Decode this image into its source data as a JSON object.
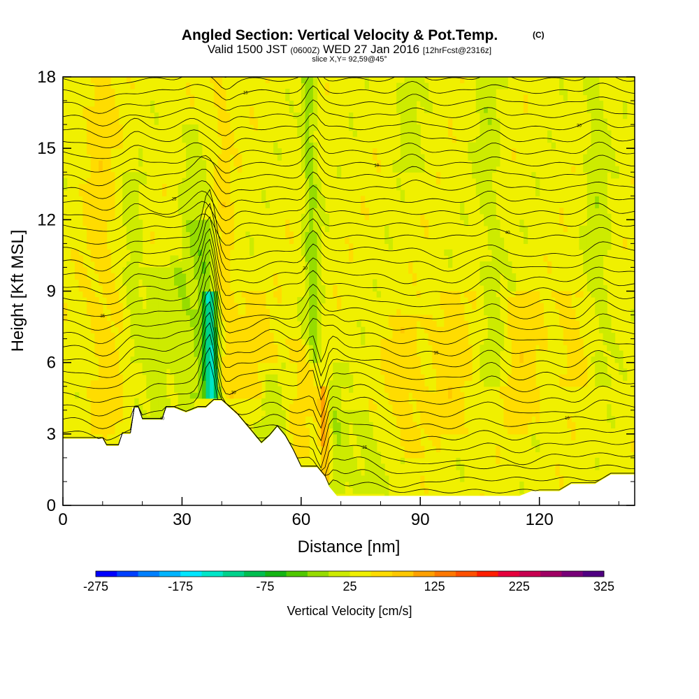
{
  "header": {
    "title": "Angled Section: Vertical Velocity & Pot.Temp.",
    "title_unit": "(C)",
    "valid_prefix": "Valid 1500 JST",
    "valid_utc": "(0600Z)",
    "valid_date": "WED 27 Jan 2016",
    "forecast": "[12hrFcst@2316z]",
    "slice": "slice X,Y= 92,59@45°"
  },
  "chart_data": {
    "type": "heatmap",
    "xlabel": "Distance [nm]",
    "ylabel": "Height [Kft MSL]",
    "xlim": [
      0,
      144
    ],
    "ylim": [
      0,
      18
    ],
    "x_ticks": [
      0,
      30,
      60,
      90,
      120
    ],
    "y_ticks": [
      0,
      3,
      6,
      9,
      12,
      15,
      18
    ],
    "colorbar": {
      "label": "Vertical Velocity [cm/s]",
      "tick_labels": [
        "-275",
        "-175",
        "-75",
        "25",
        "125",
        "225",
        "325"
      ],
      "min": -275,
      "step": 25,
      "colors": [
        "#0000ff",
        "#0040ff",
        "#0080ff",
        "#00b4ff",
        "#00e6ff",
        "#00e6c8",
        "#00d28c",
        "#00be50",
        "#14b414",
        "#50c800",
        "#96dc00",
        "#cdeb00",
        "#f0f000",
        "#ffdc00",
        "#ffc800",
        "#ffa000",
        "#ff7800",
        "#ff5000",
        "#ff1e00",
        "#e6003c",
        "#c80050",
        "#a00064",
        "#780078",
        "#500082"
      ]
    },
    "base_field": 3,
    "features": [
      {
        "x": 10,
        "width": 4,
        "amp": 1,
        "top": 18,
        "bottom": 3
      },
      {
        "x": 18,
        "width": 2.5,
        "amp": -1,
        "top": 14,
        "bottom": 6
      },
      {
        "x": 23,
        "width": 3,
        "amp": -1,
        "top": 10,
        "bottom": 3.5
      },
      {
        "x": 29,
        "width": 3,
        "amp": -1,
        "top": 10,
        "bottom": 4
      },
      {
        "x": 33,
        "width": 3,
        "amp": -1,
        "top": 16,
        "bottom": 4.5
      },
      {
        "x": 37,
        "width": 1.6,
        "amp": -5,
        "top": 9,
        "bottom": 4.5
      },
      {
        "x": 36,
        "width": 2.5,
        "amp": -2,
        "top": 12,
        "bottom": 4.5
      },
      {
        "x": 41,
        "width": 2,
        "amp": 1,
        "top": 18,
        "bottom": 4.5
      },
      {
        "x": 47,
        "width": 5,
        "amp": 1,
        "top": 9,
        "bottom": 4.5
      },
      {
        "x": 53,
        "width": 5,
        "amp": -1,
        "top": 6,
        "bottom": 2
      },
      {
        "x": 58,
        "width": 4,
        "amp": 1,
        "top": 7,
        "bottom": 2
      },
      {
        "x": 63,
        "width": 1.8,
        "amp": -2,
        "top": 18,
        "bottom": 6
      },
      {
        "x": 65,
        "width": 1.2,
        "amp": 3,
        "top": 5,
        "bottom": 1
      },
      {
        "x": 68,
        "width": 2,
        "amp": -1,
        "top": 6,
        "bottom": 0.4
      },
      {
        "x": 75,
        "width": 5,
        "amp": -1,
        "top": 4,
        "bottom": 0.4
      },
      {
        "x": 86,
        "width": 5,
        "amp": 1,
        "top": 8,
        "bottom": 2
      },
      {
        "x": 88,
        "width": 3,
        "amp": -1,
        "top": 18,
        "bottom": 14
      },
      {
        "x": 97,
        "width": 5,
        "amp": 1,
        "top": 9,
        "bottom": 3
      },
      {
        "x": 108,
        "width": 3,
        "amp": -1,
        "top": 18,
        "bottom": 5
      },
      {
        "x": 115,
        "width": 5,
        "amp": 1,
        "top": 9,
        "bottom": 3
      },
      {
        "x": 128,
        "width": 4,
        "amp": 1,
        "top": 9,
        "bottom": 5
      },
      {
        "x": 135,
        "width": 3,
        "amp": -1,
        "top": 18,
        "bottom": 5
      }
    ],
    "terrain": {
      "x": [
        0,
        2,
        10,
        11,
        14,
        14.5,
        17,
        17.5,
        19,
        20,
        25,
        26,
        28,
        31,
        34,
        36,
        38,
        40,
        44,
        46,
        48,
        50,
        52,
        54,
        56,
        58,
        60,
        64,
        66,
        67,
        69,
        95,
        115,
        118,
        125,
        128,
        134,
        138,
        144
      ],
      "y": [
        2.8,
        2.8,
        2.8,
        2.5,
        2.5,
        3,
        3,
        4.1,
        4.1,
        3.6,
        3.6,
        4.1,
        4.1,
        3.9,
        4.1,
        4.1,
        4.4,
        4.4,
        3.8,
        3.4,
        3,
        2.6,
        2.9,
        3.3,
        2.9,
        2.3,
        1.6,
        1.6,
        1.2,
        0.8,
        0.4,
        0.4,
        0.4,
        0.6,
        0.6,
        0.9,
        0.9,
        1.3,
        1.3
      ]
    },
    "isentropes": {
      "count": 36,
      "bottom_height": 0.6,
      "top_height": 18.4,
      "labeled_every": 3
    },
    "contour_labels": [
      "40",
      "35",
      "30",
      "25",
      "20",
      "15",
      "10"
    ]
  }
}
